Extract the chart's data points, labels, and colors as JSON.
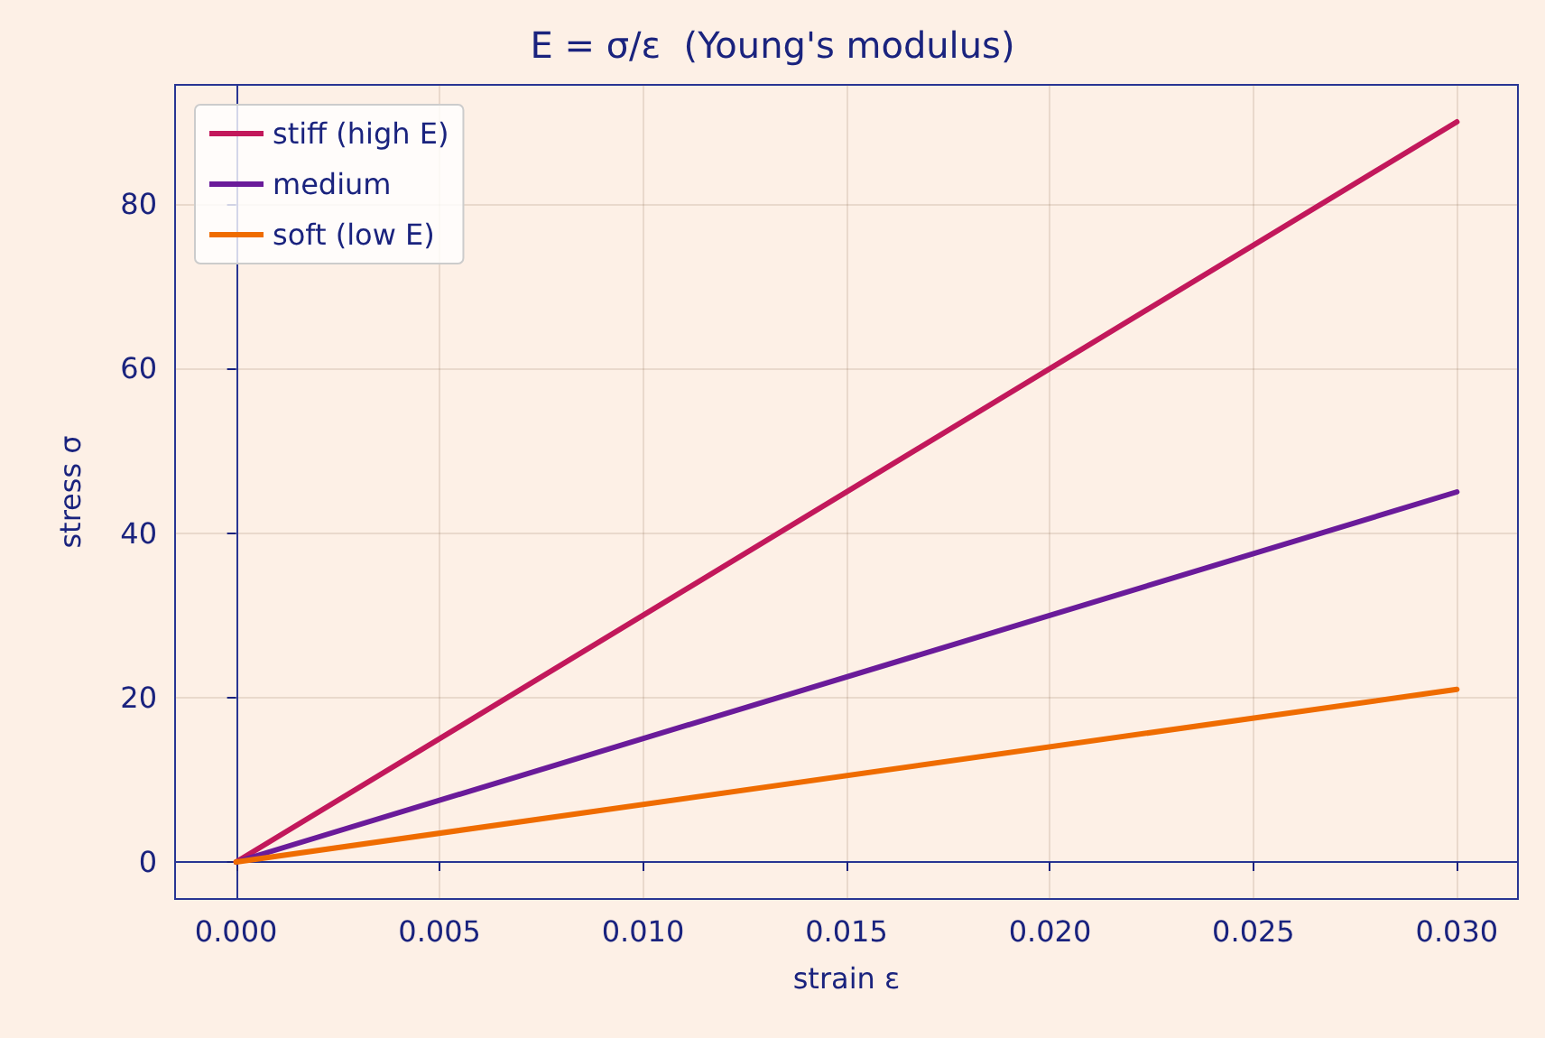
{
  "chart_data": {
    "type": "line",
    "title": "E = σ/ε  (Young's modulus)",
    "xlabel": "strain ε",
    "ylabel": "stress σ",
    "x": [
      0,
      0.03
    ],
    "series": [
      {
        "name": "stiff (high E)",
        "color": "#c2185b",
        "values": [
          0,
          90
        ]
      },
      {
        "name": "medium",
        "color": "#6a1b9a",
        "values": [
          0,
          45
        ]
      },
      {
        "name": "soft (low E)",
        "color": "#ef6c00",
        "values": [
          0,
          21
        ]
      }
    ],
    "xlim": [
      -0.0015,
      0.0315
    ],
    "xticks": [
      {
        "value": 0,
        "label": "0.000"
      },
      {
        "value": 0.005,
        "label": "0.005"
      },
      {
        "value": 0.01,
        "label": "0.010"
      },
      {
        "value": 0.015,
        "label": "0.015"
      },
      {
        "value": 0.02,
        "label": "0.020"
      },
      {
        "value": 0.025,
        "label": "0.025"
      },
      {
        "value": 0.03,
        "label": "0.030"
      }
    ],
    "ylim": [
      -4.5,
      94.5
    ],
    "yticks": [
      0,
      20,
      40,
      60,
      80
    ],
    "grid": true,
    "legend": "top left",
    "marker": "none",
    "line_style": "solid"
  }
}
